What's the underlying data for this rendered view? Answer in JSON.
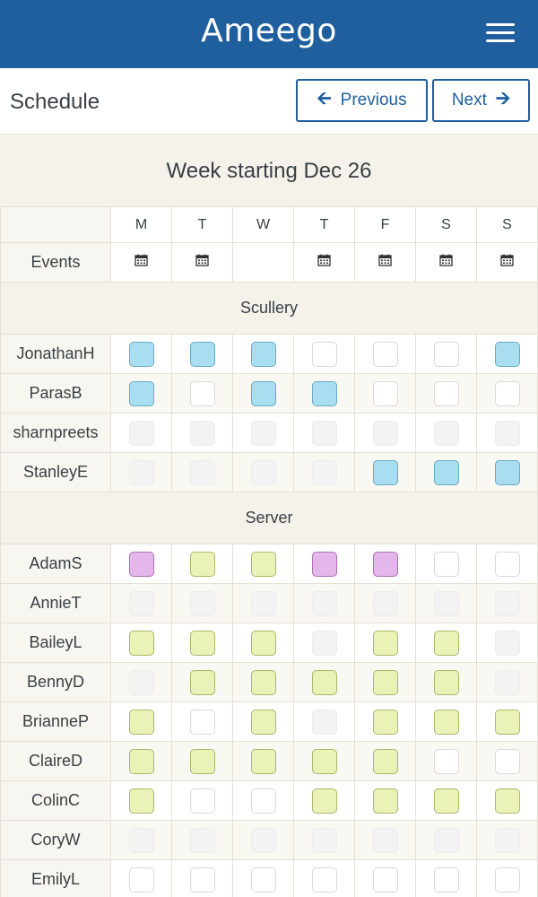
{
  "app": {
    "logo": "Ameego"
  },
  "header": {
    "title": "Schedule",
    "previous_label": "Previous",
    "next_label": "Next"
  },
  "week": {
    "label": "Week starting Dec 26"
  },
  "days": [
    "M",
    "T",
    "W",
    "T",
    "F",
    "S",
    "S"
  ],
  "events": {
    "label": "Events",
    "has_event": [
      true,
      true,
      false,
      true,
      true,
      true,
      true
    ]
  },
  "colors": {
    "blue": "#a8def0",
    "green": "#eaf2b8",
    "purple": "#e4b7ea",
    "grey": "#f3f3f3",
    "white": "#ffffff",
    "brand": "#1f5f9e"
  },
  "groups": [
    {
      "name": "Scullery",
      "people": [
        {
          "name": "JonathanH",
          "shifts": [
            "blue",
            "blue",
            "blue",
            "white",
            "white",
            "white",
            "blue"
          ]
        },
        {
          "name": "ParasB",
          "shifts": [
            "blue",
            "white",
            "blue",
            "blue",
            "white",
            "white",
            "white"
          ]
        },
        {
          "name": "sharnpreets",
          "shifts": [
            "grey",
            "grey",
            "grey",
            "grey",
            "grey",
            "grey",
            "grey"
          ]
        },
        {
          "name": "StanleyE",
          "shifts": [
            "grey",
            "grey",
            "grey",
            "grey",
            "blue",
            "blue",
            "blue"
          ]
        }
      ]
    },
    {
      "name": "Server",
      "people": [
        {
          "name": "AdamS",
          "shifts": [
            "purple",
            "green",
            "green",
            "purple",
            "purple",
            "white",
            "white"
          ]
        },
        {
          "name": "AnnieT",
          "shifts": [
            "grey",
            "grey",
            "grey",
            "grey",
            "grey",
            "grey",
            "grey"
          ]
        },
        {
          "name": "BaileyL",
          "shifts": [
            "green",
            "green",
            "green",
            "grey",
            "green",
            "green",
            "grey"
          ]
        },
        {
          "name": "BennyD",
          "shifts": [
            "grey",
            "green",
            "green",
            "green",
            "green",
            "green",
            "grey"
          ]
        },
        {
          "name": "BrianneP",
          "shifts": [
            "green",
            "white",
            "green",
            "grey",
            "green",
            "green",
            "green"
          ]
        },
        {
          "name": "ClaireD",
          "shifts": [
            "green",
            "green",
            "green",
            "green",
            "green",
            "white",
            "white"
          ]
        },
        {
          "name": "ColinC",
          "shifts": [
            "green",
            "white",
            "white",
            "green",
            "green",
            "green",
            "green"
          ]
        },
        {
          "name": "CoryW",
          "shifts": [
            "grey",
            "grey",
            "grey",
            "grey",
            "grey",
            "grey",
            "grey"
          ]
        },
        {
          "name": "EmilyL",
          "shifts": [
            "white",
            "white",
            "white",
            "white",
            "white",
            "white",
            "white"
          ]
        }
      ]
    }
  ]
}
